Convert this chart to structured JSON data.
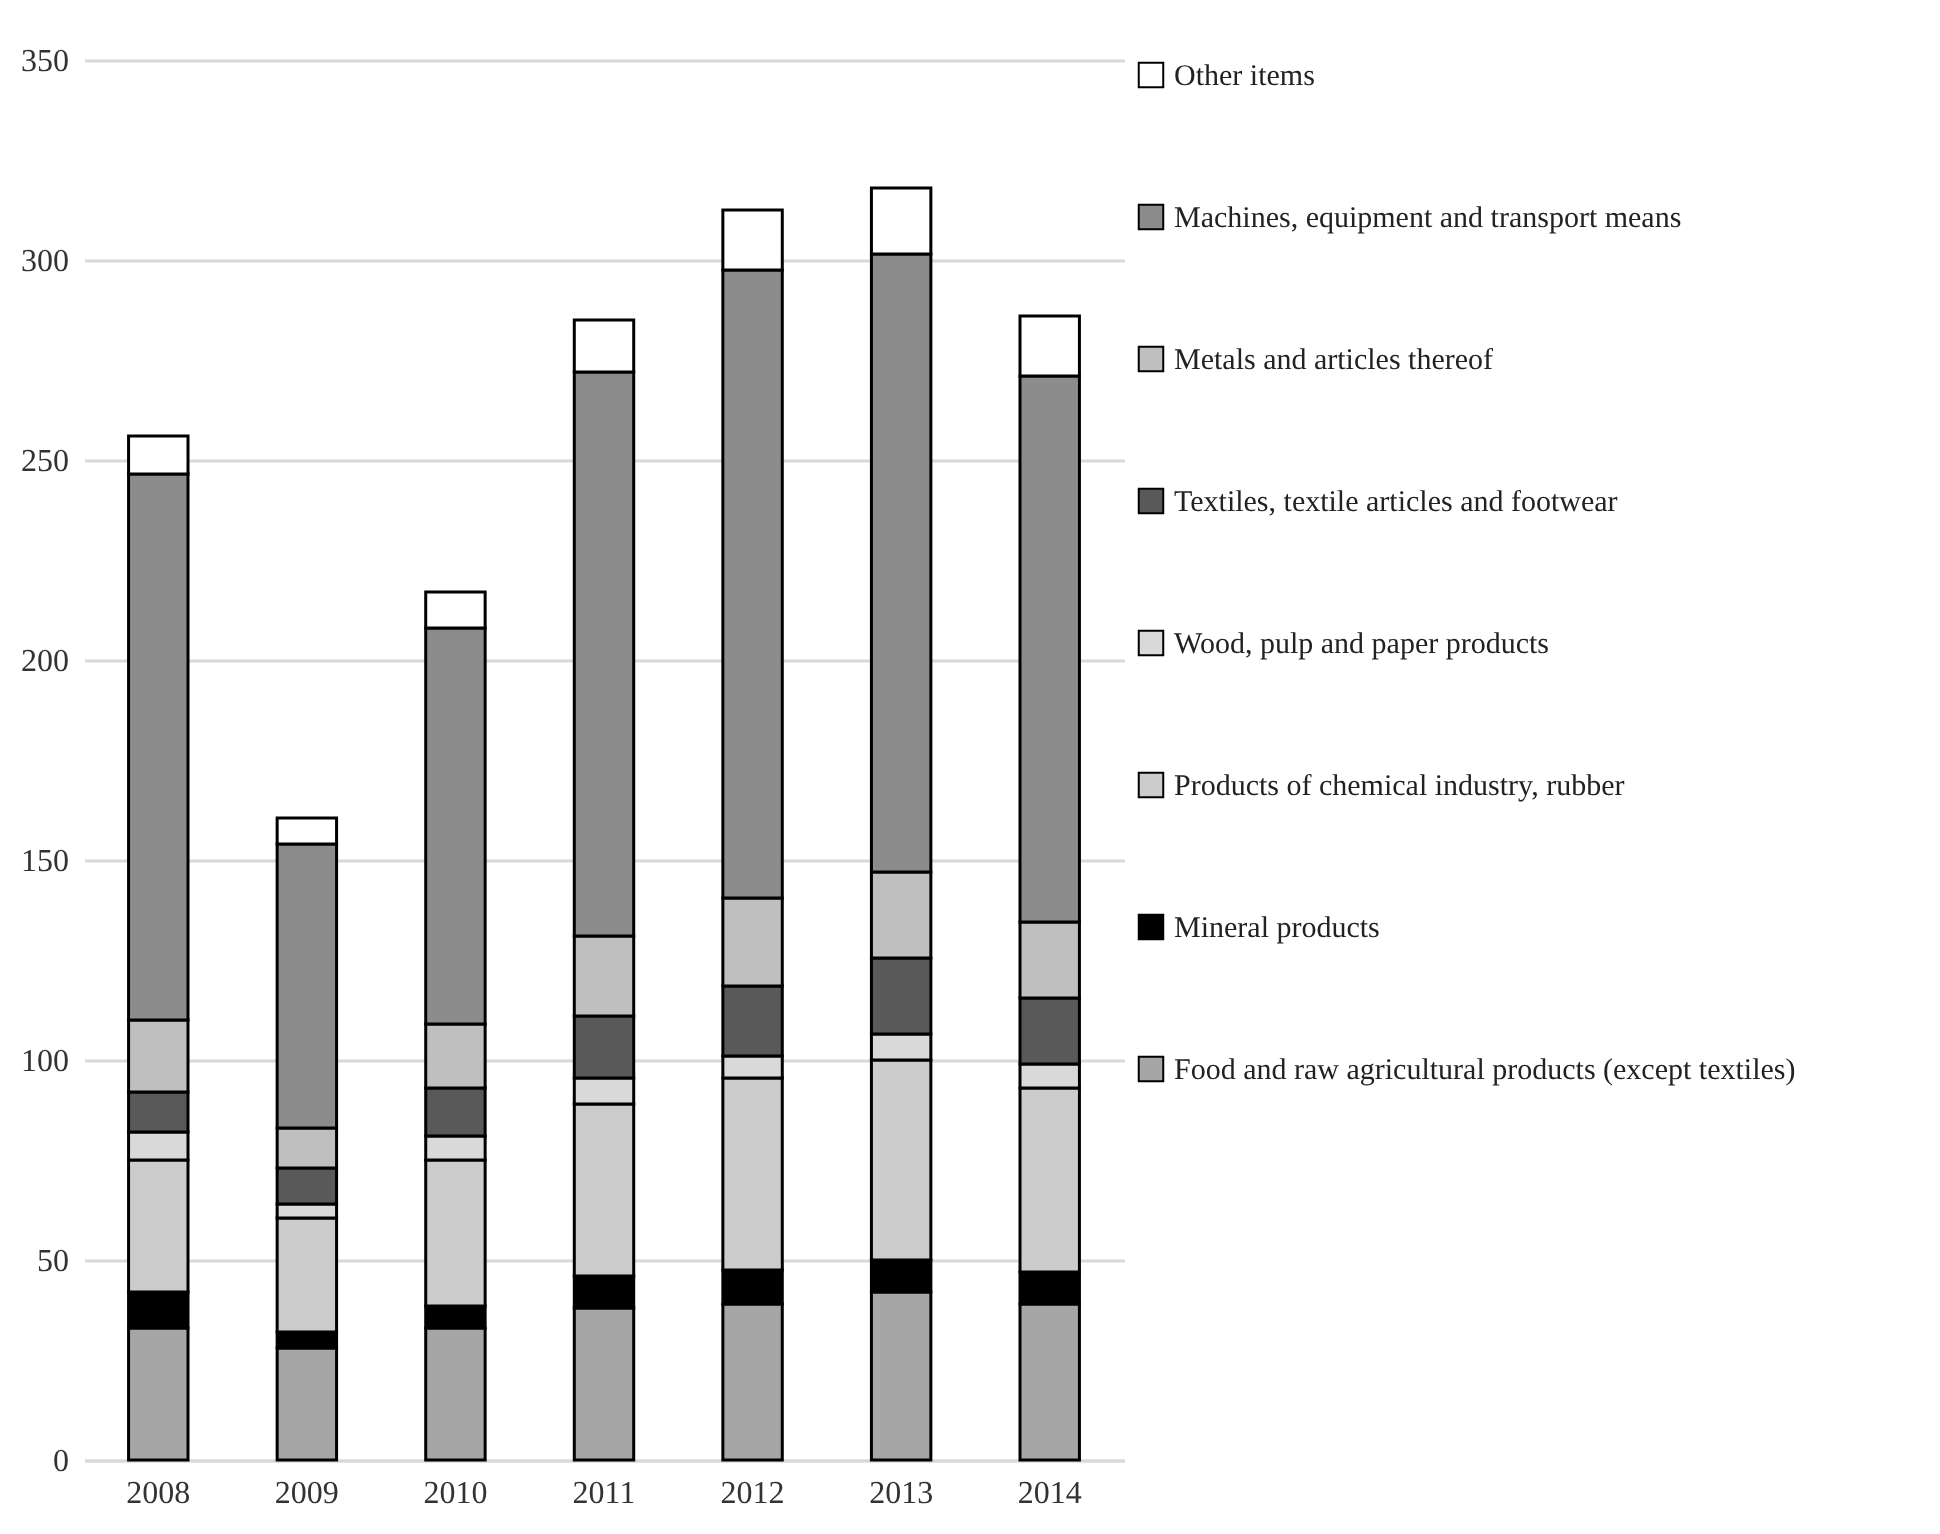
{
  "chart_data": {
    "type": "bar",
    "stacked": true,
    "categories": [
      "2008",
      "2009",
      "2010",
      "2011",
      "2012",
      "2013",
      "2014"
    ],
    "series": [
      {
        "name": "Food and raw agricultural products (except textiles)",
        "color": "#a6a6a6",
        "values": [
          33,
          28,
          33,
          38,
          39,
          42,
          39
        ]
      },
      {
        "name": "Mineral products",
        "color": "#000000",
        "values": [
          9,
          4,
          5.5,
          8,
          8.5,
          8,
          8
        ]
      },
      {
        "name": "Products of chemical industry, rubber",
        "color": "#cccccc",
        "values": [
          33,
          28.5,
          36.5,
          43,
          48,
          50,
          46
        ]
      },
      {
        "name": "Wood, pulp and paper products",
        "color": "#d9d9d9",
        "values": [
          7,
          3.5,
          6,
          6.5,
          5.5,
          6.5,
          6
        ]
      },
      {
        "name": "Textiles, textile articles and footwear",
        "color": "#595959",
        "values": [
          10,
          9,
          12,
          15.5,
          17.5,
          19,
          16.5
        ]
      },
      {
        "name": "Metals and articles thereof",
        "color": "#bfbfbf",
        "values": [
          18,
          10,
          16,
          20,
          22,
          21.5,
          19
        ]
      },
      {
        "name": "Machines, equipment and transport means",
        "color": "#8c8c8c",
        "values": [
          136.5,
          71,
          99,
          141,
          157,
          154.5,
          136.5
        ]
      },
      {
        "name": "Other items",
        "color": "#ffffff",
        "values": [
          9.5,
          6.5,
          9,
          13,
          15,
          16.5,
          15
        ]
      }
    ],
    "ylim": [
      0,
      350
    ],
    "yticks": [
      0,
      50,
      100,
      150,
      200,
      250,
      300,
      350
    ],
    "grid": "y",
    "legend": "right"
  }
}
